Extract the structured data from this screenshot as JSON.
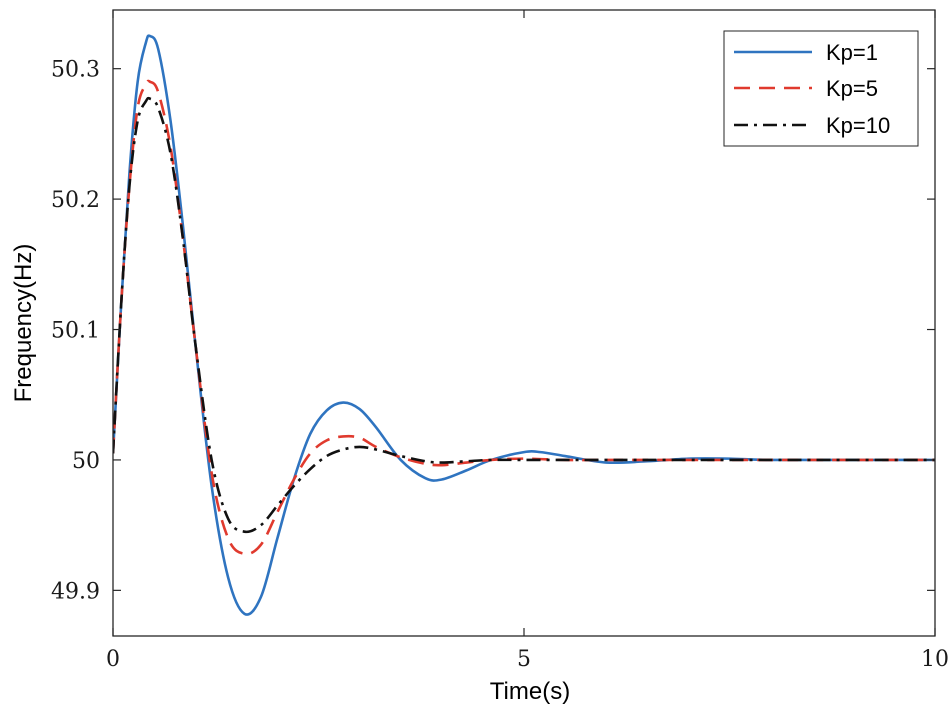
{
  "chart_data": {
    "type": "line",
    "title": "",
    "xlabel": "Time(s)",
    "ylabel": "Frequency(Hz)",
    "xlim": [
      0,
      10
    ],
    "ylim": [
      49.865,
      50.345
    ],
    "x_ticks": [
      0,
      5,
      10
    ],
    "x_tick_labels": [
      "0",
      "5",
      "10"
    ],
    "y_ticks": [
      49.9,
      50.0,
      50.1,
      50.2,
      50.3
    ],
    "y_tick_labels": [
      "49.9",
      "50",
      "50.1",
      "50.2",
      "50.3"
    ],
    "grid": false,
    "legend_position": "top-right",
    "series": [
      {
        "name": "Kp=1",
        "color": "#2f74c0",
        "dash": "solid",
        "x": [
          0,
          0.1,
          0.2,
          0.3,
          0.4,
          0.45,
          0.55,
          0.7,
          0.85,
          1.0,
          1.2,
          1.4,
          1.6,
          1.8,
          2.0,
          2.2,
          2.4,
          2.6,
          2.8,
          3.0,
          3.2,
          3.5,
          3.8,
          4.0,
          4.3,
          4.6,
          5.0,
          5.2,
          5.5,
          6.0,
          6.5,
          7.0,
          7.5,
          8.0,
          9.0,
          10.0
        ],
        "y": [
          50.005,
          50.12,
          50.22,
          50.29,
          50.32,
          50.325,
          50.315,
          50.26,
          50.18,
          50.09,
          49.98,
          49.91,
          49.882,
          49.895,
          49.94,
          49.985,
          50.02,
          50.038,
          50.044,
          50.039,
          50.025,
          50.0,
          49.986,
          49.985,
          49.992,
          50.0,
          50.006,
          50.006,
          50.003,
          49.998,
          49.999,
          50.001,
          50.001,
          50.0,
          50.0,
          50.0
        ]
      },
      {
        "name": "Kp=5",
        "color": "#e03a2e",
        "dash": "dashed",
        "x": [
          0,
          0.1,
          0.2,
          0.3,
          0.4,
          0.45,
          0.55,
          0.7,
          0.85,
          1.0,
          1.2,
          1.4,
          1.6,
          1.8,
          2.0,
          2.2,
          2.4,
          2.6,
          2.8,
          3.0,
          3.2,
          3.5,
          3.8,
          4.0,
          4.3,
          4.6,
          5.0,
          5.5,
          6.0,
          7.0,
          8.0,
          10.0
        ],
        "y": [
          50.005,
          50.12,
          50.21,
          50.27,
          50.288,
          50.29,
          50.282,
          50.24,
          50.17,
          50.09,
          49.99,
          49.94,
          49.928,
          49.935,
          49.96,
          49.985,
          50.005,
          50.015,
          50.018,
          50.017,
          50.01,
          50.002,
          49.997,
          49.996,
          49.998,
          50.0,
          50.001,
          50.0,
          50.0,
          50.0,
          50.0,
          50.0
        ]
      },
      {
        "name": "Kp=10",
        "color": "#111111",
        "dash": "dashdot",
        "x": [
          0,
          0.1,
          0.2,
          0.3,
          0.4,
          0.45,
          0.55,
          0.7,
          0.85,
          1.0,
          1.2,
          1.4,
          1.6,
          1.8,
          2.0,
          2.2,
          2.4,
          2.6,
          2.8,
          3.0,
          3.2,
          3.5,
          3.8,
          4.0,
          4.3,
          4.6,
          5.0,
          5.5,
          6.0,
          7.0,
          8.0,
          10.0
        ],
        "y": [
          50.005,
          50.12,
          50.21,
          50.26,
          50.275,
          50.277,
          50.27,
          50.235,
          50.17,
          50.09,
          50.0,
          49.955,
          49.945,
          49.95,
          49.965,
          49.98,
          49.993,
          50.003,
          50.008,
          50.01,
          50.008,
          50.003,
          49.999,
          49.998,
          49.999,
          50.0,
          50.0,
          50.0,
          50.0,
          50.0,
          50.0,
          50.0
        ]
      }
    ]
  }
}
